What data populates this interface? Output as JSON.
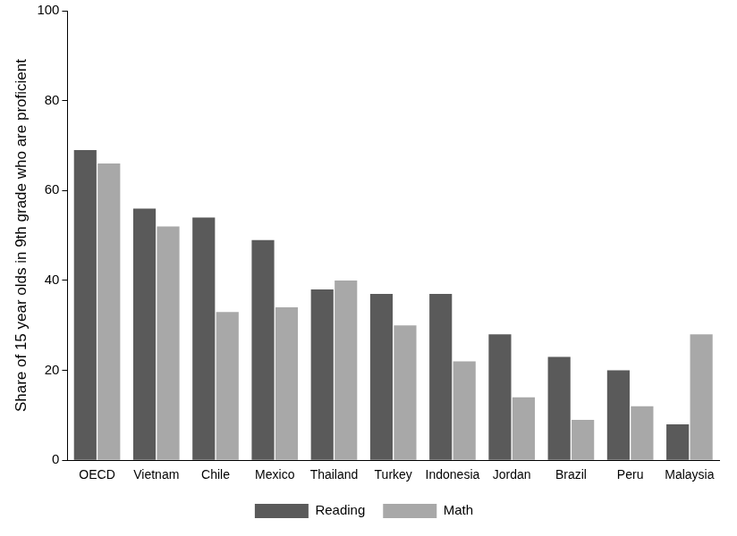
{
  "chart_data": {
    "type": "bar",
    "y_label": "Share of 15 year olds in 9th grade who are proficient",
    "categories": [
      "OECD",
      "Vietnam",
      "Chile",
      "Mexico",
      "Thailand",
      "Turkey",
      "Indonesia",
      "Jordan",
      "Brazil",
      "Peru",
      "Malaysia"
    ],
    "series": [
      {
        "name": "Reading",
        "color": "#5a5a5a",
        "values": [
          69,
          56,
          54,
          49,
          38,
          37,
          37,
          28,
          23,
          20,
          8
        ]
      },
      {
        "name": "Math",
        "color": "#a8a8a8",
        "values": [
          66,
          52,
          33,
          34,
          40,
          30,
          22,
          14,
          9,
          12,
          28
        ]
      }
    ],
    "ylim": [
      0,
      100
    ],
    "yticks": [
      0,
      20,
      40,
      60,
      80,
      100
    ],
    "grid": false,
    "legend": "bottom"
  }
}
